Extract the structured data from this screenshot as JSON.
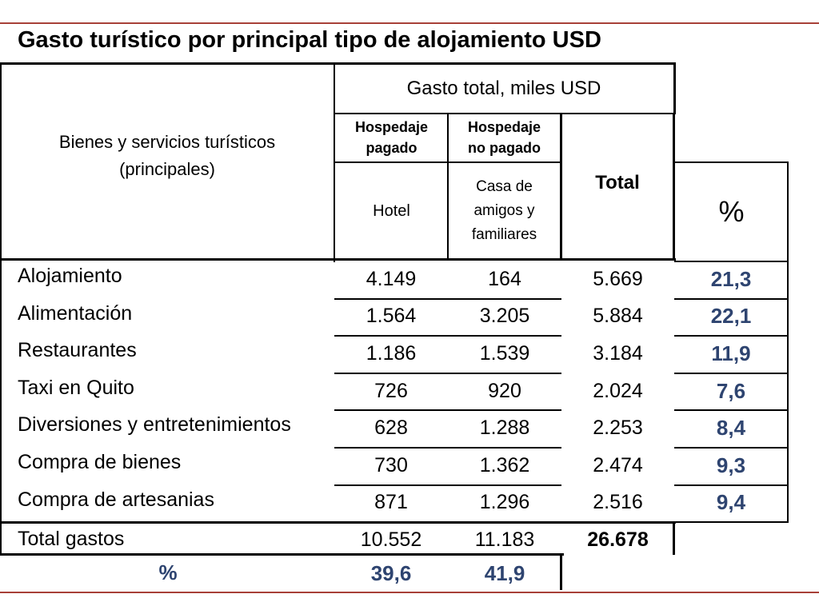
{
  "title": "Gasto turístico por principal tipo de alojamiento  USD",
  "header": {
    "row_header_line1": "Bienes y servicios turísticos",
    "row_header_line2": "(principales)",
    "group_header": "Gasto total, miles USD",
    "col1_type_line1": "Hospedaje",
    "col1_type_line2": "pagado",
    "col2_type_line1": "Hospedaje",
    "col2_type_line2": "no pagado",
    "col1_sub": "Hotel",
    "col2_sub_line1": "Casa de",
    "col2_sub_line2": "amigos y",
    "col2_sub_line3": "familiares",
    "total": "Total",
    "percent": "%"
  },
  "rows": [
    {
      "label": "Alojamiento",
      "hotel": "4.149",
      "casa": "164",
      "total": "5.669",
      "pct": "21,3"
    },
    {
      "label": "Alimentación",
      "hotel": "1.564",
      "casa": "3.205",
      "total": "5.884",
      "pct": "22,1"
    },
    {
      "label": "Restaurantes",
      "hotel": "1.186",
      "casa": "1.539",
      "total": "3.184",
      "pct": "11,9"
    },
    {
      "label": "Taxi en Quito",
      "hotel": "726",
      "casa": "920",
      "total": "2.024",
      "pct": "7,6"
    },
    {
      "label": "Diversiones y entretenimientos",
      "hotel": "628",
      "casa": "1.288",
      "total": "2.253",
      "pct": "8,4"
    },
    {
      "label": "Compra de bienes",
      "hotel": "730",
      "casa": "1.362",
      "total": "2.474",
      "pct": "9,3"
    },
    {
      "label": "Compra de artesanias",
      "hotel": "871",
      "casa": "1.296",
      "total": "2.516",
      "pct": "9,4"
    }
  ],
  "totals": {
    "label": "Total gastos",
    "hotel": "10.552",
    "casa": "11.183",
    "total": "26.678"
  },
  "percent_row": {
    "label": "%",
    "hotel": "39,6",
    "casa": "41,9"
  }
}
